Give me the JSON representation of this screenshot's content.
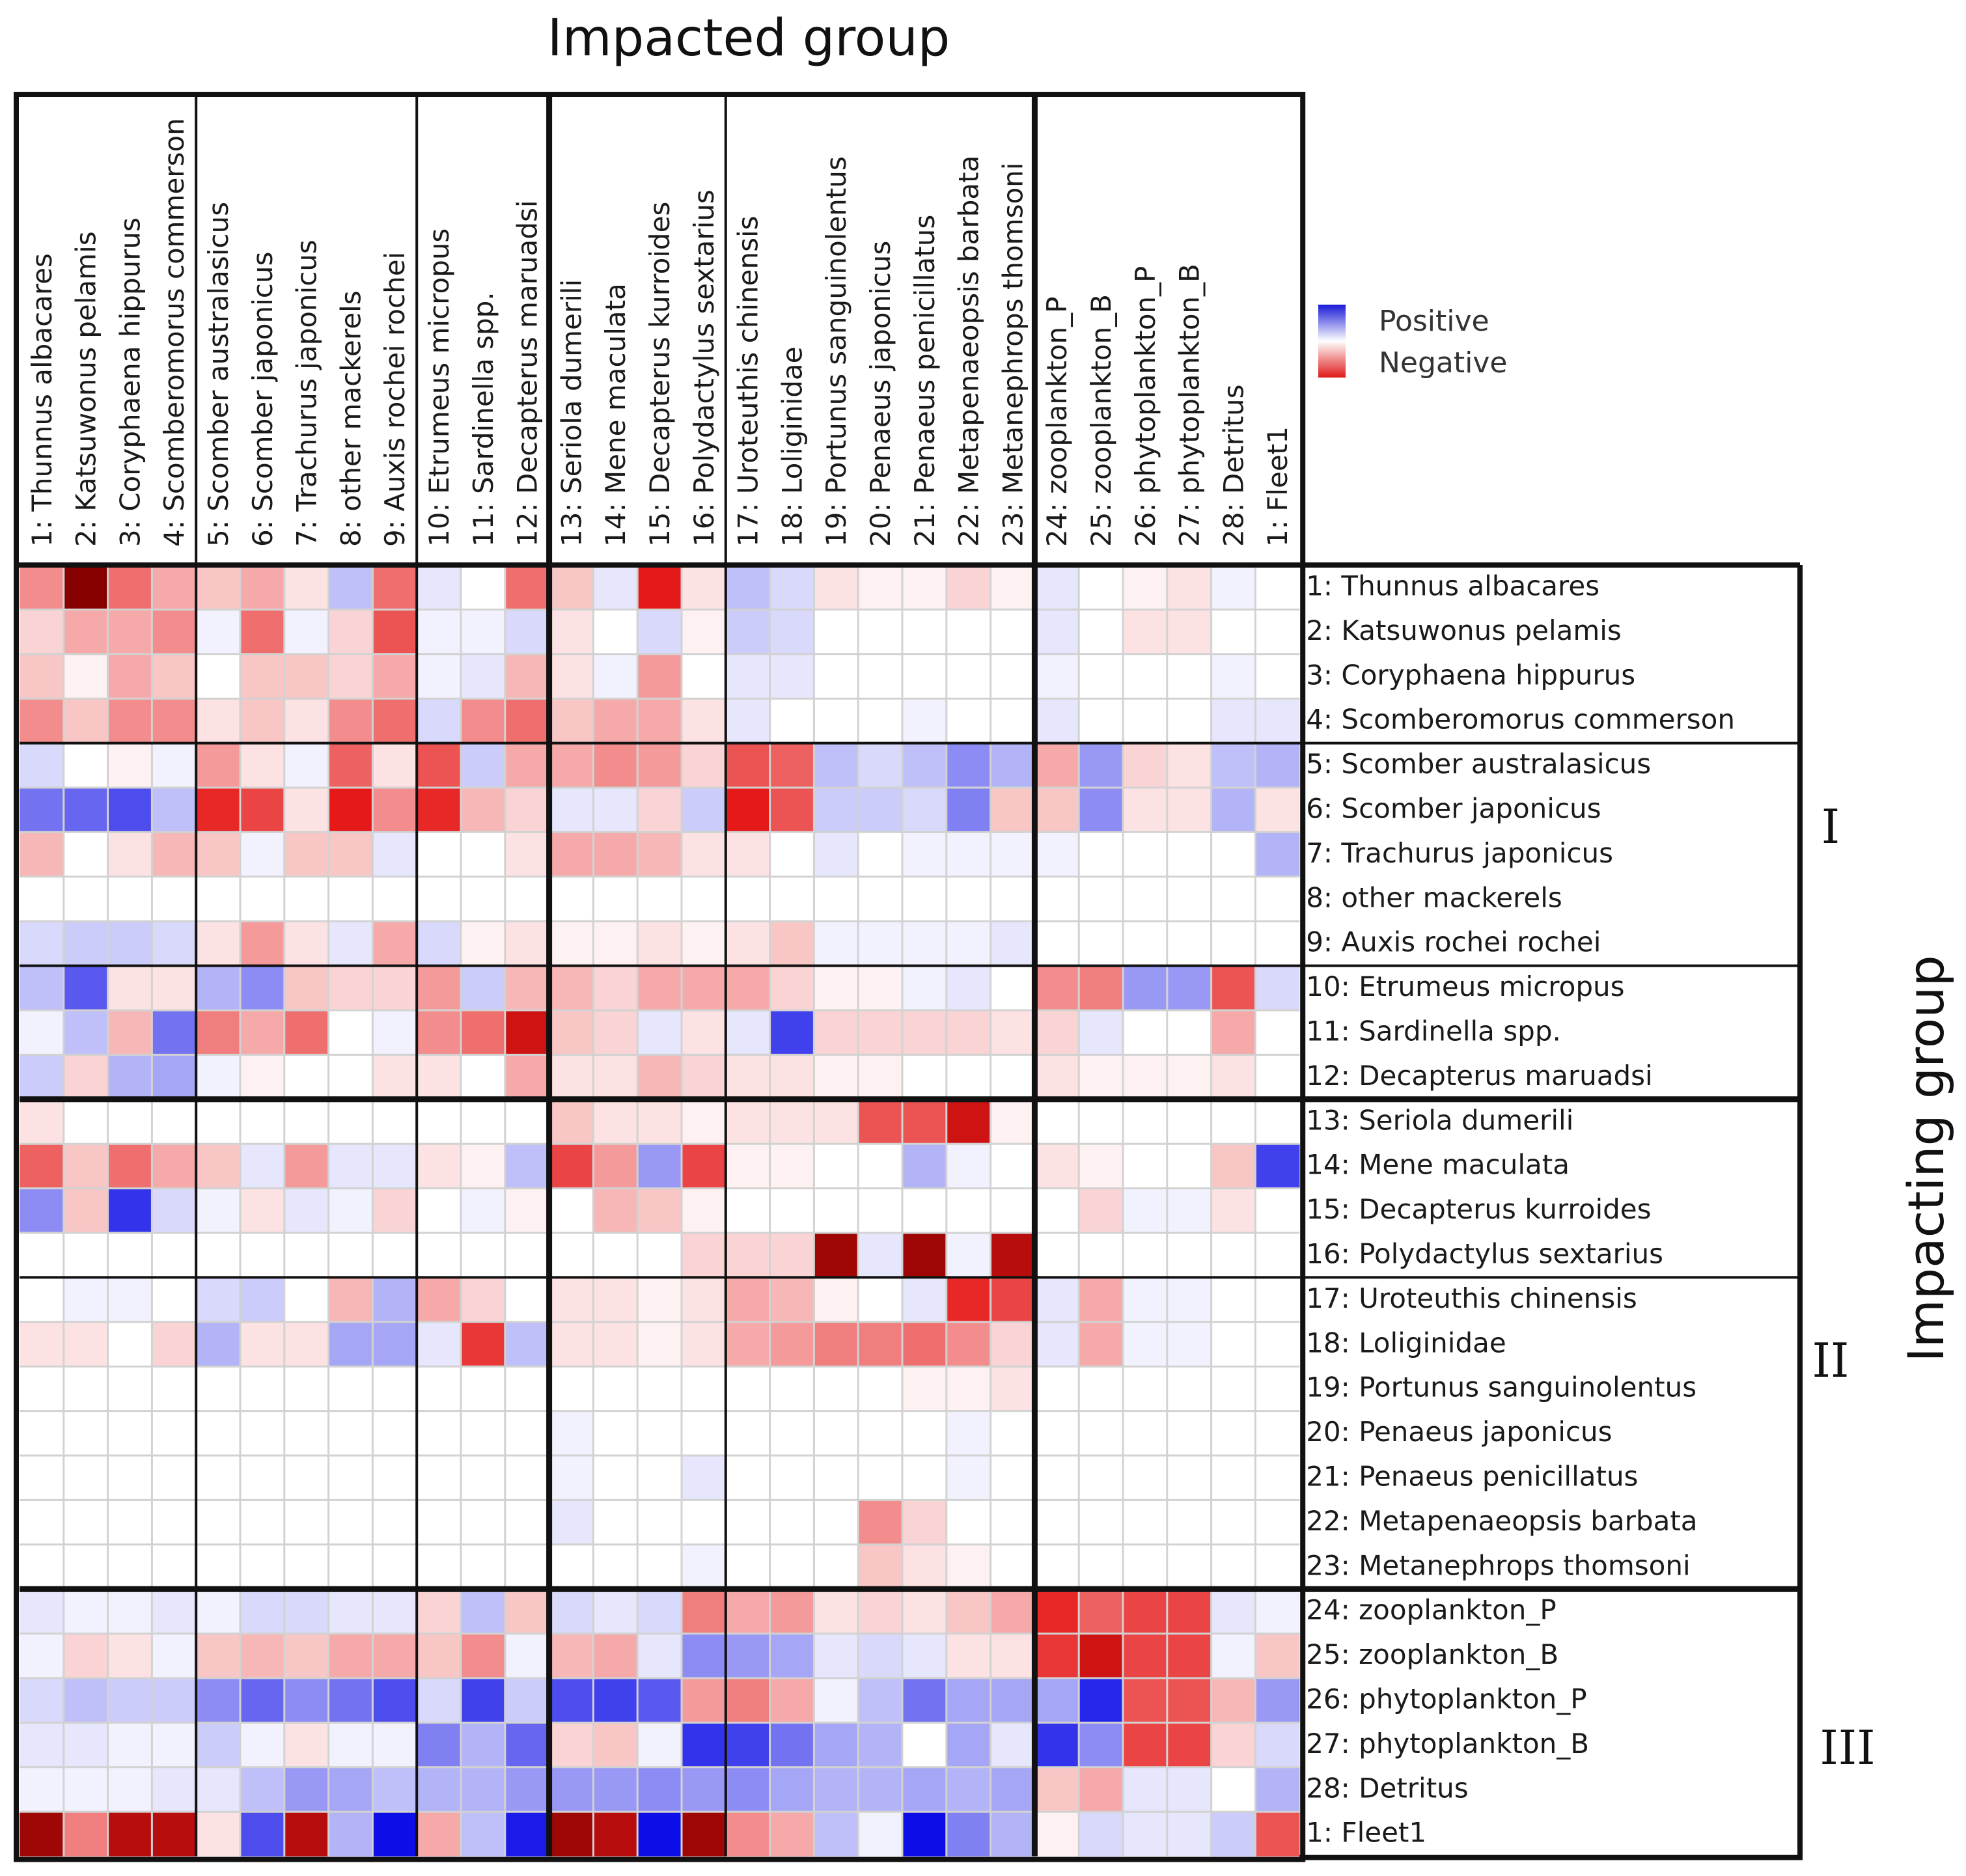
{
  "chart_data": {
    "type": "heatmap",
    "title": "Impacted group",
    "xlabel": "Impacted group",
    "ylabel": "Impacting group",
    "legend": {
      "position": "top-right",
      "entries": [
        {
          "label": "Positive",
          "color": "#2020e0"
        },
        {
          "label": "Negative",
          "color": "#e02020"
        }
      ]
    },
    "value_range": [
      -1,
      1
    ],
    "columns": [
      "1: Thunnus albacares",
      "2: Katsuwonus pelamis",
      "3: Coryphaena hippurus",
      "4: Scomberomorus commerson",
      "5: Scomber australasicus",
      "6: Scomber japonicus",
      "7: Trachurus japonicus",
      "8: other mackerels",
      "9: Auxis rochei rochei",
      "10: Etrumeus micropus",
      "11: Sardinella spp.",
      "12: Decapterus maruadsi",
      "13: Seriola dumerili",
      "14: Mene maculata",
      "15: Decapterus kurroides",
      "16: Polydactylus sextarius",
      "17: Uroteuthis chinensis",
      "18: Loliginidae",
      "19: Portunus sanguinolentus",
      "20: Penaeus japonicus",
      "21: Penaeus penicillatus",
      "22: Metapenaeopsis barbata",
      "23: Metanephrops thomsoni",
      "24: zooplankton_P",
      "25: zooplankton_B",
      "26: phytoplankton_P",
      "27: phytoplankton_B",
      "28: Detritus",
      "1: Fleet1"
    ],
    "rows": [
      "1: Thunnus albacares",
      "2: Katsuwonus pelamis",
      "3: Coryphaena hippurus",
      "4: Scomberomorus commerson",
      "5: Scomber australasicus",
      "6: Scomber japonicus",
      "7: Trachurus japonicus",
      "8: other mackerels",
      "9: Auxis rochei rochei",
      "10: Etrumeus micropus",
      "11: Sardinella spp.",
      "12: Decapterus maruadsi",
      "13: Seriola dumerili",
      "14: Mene maculata",
      "15: Decapterus kurroides",
      "16: Polydactylus sextarius",
      "17: Uroteuthis chinensis",
      "18: Loliginidae",
      "19: Portunus sanguinolentus",
      "20: Penaeus japonicus",
      "21: Penaeus penicillatus",
      "22: Metapenaeopsis barbata",
      "23: Metanephrops thomsoni",
      "24: zooplankton_P",
      "25: zooplankton_B",
      "26: phytoplankton_P",
      "27: phytoplankton_B",
      "28: Detritus",
      "1: Fleet1"
    ],
    "row_groups": [
      "I",
      "II",
      "III"
    ],
    "values": [
      [
        -0.4,
        -1.0,
        -0.5,
        -0.3,
        -0.2,
        -0.3,
        -0.1,
        0.25,
        -0.5,
        0.1,
        0,
        -0.5,
        -0.2,
        0.1,
        -0.8,
        -0.1,
        0.25,
        0.15,
        -0.1,
        -0.05,
        -0.05,
        -0.15,
        -0.05,
        0.1,
        0,
        -0.05,
        -0.1,
        0.05,
        0
      ],
      [
        -0.15,
        -0.3,
        -0.3,
        -0.4,
        0.05,
        -0.5,
        0.05,
        -0.15,
        -0.6,
        0.05,
        0.05,
        0.15,
        -0.1,
        0,
        0.15,
        -0.05,
        0.2,
        0.15,
        0,
        0,
        0,
        0,
        0,
        0.1,
        0,
        -0.1,
        -0.1,
        0,
        0
      ],
      [
        -0.2,
        -0.05,
        -0.3,
        -0.2,
        0,
        -0.2,
        -0.2,
        -0.15,
        -0.3,
        0.05,
        0.1,
        -0.25,
        -0.1,
        0.05,
        -0.35,
        0,
        0.1,
        0.1,
        0,
        0,
        0,
        0,
        0,
        0.05,
        0,
        0,
        0,
        0.05,
        0
      ],
      [
        -0.4,
        -0.2,
        -0.4,
        -0.4,
        -0.1,
        -0.2,
        -0.1,
        -0.4,
        -0.5,
        0.15,
        -0.4,
        -0.5,
        -0.2,
        -0.3,
        -0.3,
        -0.1,
        0.1,
        0,
        0,
        0,
        0.05,
        0,
        0,
        0.1,
        0,
        0,
        0,
        0.1,
        0.1
      ],
      [
        0.15,
        0,
        -0.05,
        0.05,
        -0.35,
        -0.1,
        0.05,
        -0.55,
        -0.1,
        -0.6,
        0.2,
        -0.3,
        -0.3,
        -0.4,
        -0.35,
        -0.15,
        -0.6,
        -0.55,
        0.25,
        0.15,
        0.25,
        0.45,
        0.3,
        -0.3,
        0.4,
        -0.15,
        -0.1,
        0.25,
        0.3
      ],
      [
        0.55,
        0.6,
        0.7,
        0.25,
        -0.75,
        -0.65,
        -0.1,
        -0.8,
        -0.4,
        -0.75,
        -0.25,
        -0.15,
        0.1,
        0.1,
        -0.15,
        0.2,
        -0.8,
        -0.6,
        0.2,
        0.2,
        0.15,
        0.5,
        -0.2,
        -0.2,
        0.45,
        -0.1,
        -0.1,
        0.3,
        -0.1
      ],
      [
        -0.25,
        0,
        -0.1,
        -0.25,
        -0.2,
        0.05,
        -0.2,
        -0.2,
        0.1,
        0,
        0,
        -0.1,
        -0.3,
        -0.3,
        -0.25,
        -0.1,
        -0.1,
        0,
        0.1,
        0,
        0.05,
        0.05,
        0.05,
        0.05,
        0,
        0,
        0,
        0,
        0.3
      ],
      [
        0,
        0,
        0,
        0,
        0,
        0,
        0,
        0,
        0,
        0,
        0,
        0,
        0,
        0,
        0,
        0,
        0,
        0,
        0,
        0,
        0,
        0,
        0,
        0,
        0,
        0,
        0,
        0,
        0
      ],
      [
        0.15,
        0.2,
        0.2,
        0.15,
        -0.1,
        -0.35,
        -0.1,
        0.1,
        -0.3,
        0.15,
        -0.05,
        -0.1,
        -0.05,
        -0.05,
        -0.1,
        -0.05,
        -0.1,
        -0.2,
        0.05,
        0.05,
        0.05,
        0.05,
        0.1,
        0,
        0,
        0,
        0,
        0,
        0
      ],
      [
        0.25,
        0.65,
        -0.1,
        -0.1,
        0.3,
        0.45,
        -0.2,
        -0.15,
        -0.15,
        -0.35,
        0.2,
        -0.25,
        -0.25,
        -0.15,
        -0.3,
        -0.3,
        -0.3,
        -0.15,
        -0.05,
        -0.05,
        0.05,
        0.1,
        0,
        -0.4,
        -0.45,
        0.4,
        0.4,
        -0.6,
        0.15
      ],
      [
        0.05,
        0.25,
        -0.25,
        0.55,
        -0.45,
        -0.3,
        -0.5,
        0,
        0.05,
        -0.4,
        -0.5,
        -0.85,
        -0.2,
        -0.15,
        0.1,
        -0.1,
        0.1,
        0.75,
        -0.15,
        -0.15,
        -0.15,
        -0.15,
        -0.1,
        -0.15,
        0.1,
        0,
        0,
        -0.3,
        0
      ],
      [
        0.2,
        -0.15,
        0.3,
        0.35,
        0.05,
        -0.05,
        0,
        0,
        -0.1,
        -0.1,
        0,
        -0.3,
        -0.1,
        -0.1,
        -0.25,
        -0.15,
        -0.1,
        -0.1,
        -0.05,
        -0.05,
        0,
        0,
        0,
        -0.1,
        -0.05,
        -0.05,
        -0.05,
        -0.1,
        0
      ],
      [
        -0.1,
        0,
        0,
        0,
        0,
        0,
        0,
        0,
        0,
        0,
        0,
        0,
        -0.2,
        -0.1,
        -0.1,
        -0.05,
        -0.1,
        -0.1,
        -0.1,
        -0.6,
        -0.6,
        -0.85,
        -0.05,
        0,
        0,
        0,
        0,
        0,
        0
      ],
      [
        -0.55,
        -0.2,
        -0.5,
        -0.3,
        -0.2,
        0.1,
        -0.35,
        0.1,
        0.1,
        -0.1,
        -0.05,
        0.25,
        -0.65,
        -0.35,
        0.4,
        -0.65,
        -0.05,
        -0.05,
        0,
        0,
        0.3,
        0.05,
        0,
        -0.1,
        -0.05,
        0,
        0,
        -0.2,
        0.75
      ],
      [
        0.45,
        -0.2,
        0.8,
        0.15,
        0.05,
        -0.1,
        0.1,
        0.05,
        -0.15,
        0,
        0.05,
        -0.05,
        0,
        -0.25,
        -0.2,
        -0.05,
        0,
        0,
        0,
        0,
        0,
        0,
        0,
        0,
        -0.15,
        0.05,
        0.05,
        -0.1,
        0
      ],
      [
        0,
        0,
        0,
        0,
        0,
        0,
        0,
        0,
        0,
        0,
        0,
        0,
        0,
        0,
        0,
        -0.15,
        -0.15,
        -0.15,
        -0.95,
        0.1,
        -0.95,
        0.05,
        -0.9,
        0,
        0,
        0,
        0,
        0,
        0
      ],
      [
        0,
        0.05,
        0.05,
        0,
        0.15,
        0.2,
        0,
        -0.25,
        0.3,
        -0.3,
        -0.15,
        0,
        -0.1,
        -0.1,
        -0.05,
        -0.1,
        -0.3,
        -0.25,
        -0.05,
        0,
        0.1,
        -0.75,
        -0.65,
        0.1,
        -0.3,
        0.05,
        0.05,
        0,
        0
      ],
      [
        -0.1,
        -0.1,
        0,
        -0.15,
        0.3,
        -0.1,
        -0.1,
        0.35,
        0.35,
        0.1,
        -0.7,
        0.25,
        -0.1,
        -0.1,
        -0.05,
        -0.1,
        -0.3,
        -0.35,
        -0.45,
        -0.45,
        -0.5,
        -0.4,
        -0.15,
        0.1,
        -0.3,
        0.05,
        0.05,
        0,
        0
      ],
      [
        0,
        0,
        0,
        0,
        0,
        0,
        0,
        0,
        0,
        0,
        0,
        0,
        0,
        0,
        0,
        0,
        0,
        0,
        0,
        0,
        -0.05,
        -0.05,
        -0.1,
        0,
        0,
        0,
        0,
        0,
        0
      ],
      [
        0,
        0,
        0,
        0,
        0,
        0,
        0,
        0,
        0,
        0,
        0,
        0,
        0.05,
        0,
        0,
        0,
        0,
        0,
        0,
        0,
        0,
        0.05,
        0,
        0,
        0,
        0,
        0,
        0,
        0
      ],
      [
        0,
        0,
        0,
        0,
        0,
        0,
        0,
        0,
        0,
        0,
        0,
        0,
        0.05,
        0,
        0,
        0.1,
        0,
        0,
        0,
        0,
        0,
        0.05,
        0,
        0,
        0,
        0,
        0,
        0,
        0
      ],
      [
        0,
        0,
        0,
        0,
        0,
        0,
        0,
        0,
        0,
        0,
        0,
        0,
        0.1,
        0,
        0,
        0,
        0,
        0,
        0,
        -0.4,
        -0.15,
        0,
        0,
        0,
        0,
        0,
        0,
        0,
        0
      ],
      [
        0,
        0,
        0,
        0,
        0,
        0,
        0,
        0,
        0,
        0,
        0,
        0,
        0,
        0,
        0,
        0.05,
        0,
        0,
        0,
        -0.2,
        -0.1,
        -0.05,
        0,
        0,
        0,
        0,
        0,
        0,
        0
      ],
      [
        0.1,
        0.05,
        0.05,
        0.1,
        0.05,
        0.15,
        0.15,
        0.1,
        0.1,
        -0.15,
        0.25,
        -0.2,
        0.15,
        0.1,
        0.15,
        -0.45,
        -0.3,
        -0.35,
        -0.1,
        -0.15,
        -0.1,
        -0.2,
        -0.3,
        -0.75,
        -0.55,
        -0.65,
        -0.65,
        0.1,
        0.05
      ],
      [
        0.05,
        -0.15,
        -0.1,
        0.05,
        -0.2,
        -0.25,
        -0.2,
        -0.3,
        -0.3,
        -0.2,
        -0.4,
        0.05,
        -0.25,
        -0.3,
        0.1,
        0.45,
        0.4,
        0.35,
        0.1,
        0.15,
        0.1,
        -0.1,
        -0.1,
        -0.7,
        -0.85,
        -0.65,
        -0.65,
        0.05,
        -0.2
      ],
      [
        0.15,
        0.25,
        0.2,
        0.2,
        0.45,
        0.6,
        0.45,
        0.55,
        0.7,
        0.15,
        0.75,
        0.2,
        0.7,
        0.75,
        0.65,
        -0.35,
        -0.45,
        -0.3,
        0.05,
        0.25,
        0.55,
        0.35,
        0.35,
        0.35,
        0.85,
        -0.6,
        -0.6,
        -0.25,
        0.4
      ],
      [
        0.1,
        0.1,
        0.05,
        0.05,
        0.2,
        0.05,
        -0.1,
        0.05,
        0.05,
        0.5,
        0.3,
        0.6,
        -0.15,
        -0.2,
        0.05,
        0.8,
        0.75,
        0.55,
        0.35,
        0.3,
        0,
        0.35,
        0.1,
        0.8,
        0.45,
        -0.65,
        -0.65,
        -0.15,
        0.15
      ],
      [
        0.05,
        0.05,
        0.05,
        0.1,
        0.1,
        0.25,
        0.4,
        0.35,
        0.25,
        0.3,
        0.3,
        0.4,
        0.4,
        0.4,
        0.45,
        0.4,
        0.45,
        0.35,
        0.3,
        0.3,
        0.35,
        0.3,
        0.35,
        -0.2,
        -0.3,
        0.1,
        0.1,
        0,
        0.3
      ],
      [
        -0.95,
        -0.45,
        -0.9,
        -0.9,
        -0.1,
        0.7,
        -0.9,
        0.3,
        0.95,
        -0.3,
        0.25,
        0.9,
        -0.95,
        -0.9,
        0.95,
        -0.95,
        -0.4,
        -0.3,
        0.25,
        0.05,
        0.95,
        0.5,
        0.3,
        -0.05,
        0.15,
        0.1,
        0.1,
        0.2,
        -0.6
      ]
    ]
  }
}
